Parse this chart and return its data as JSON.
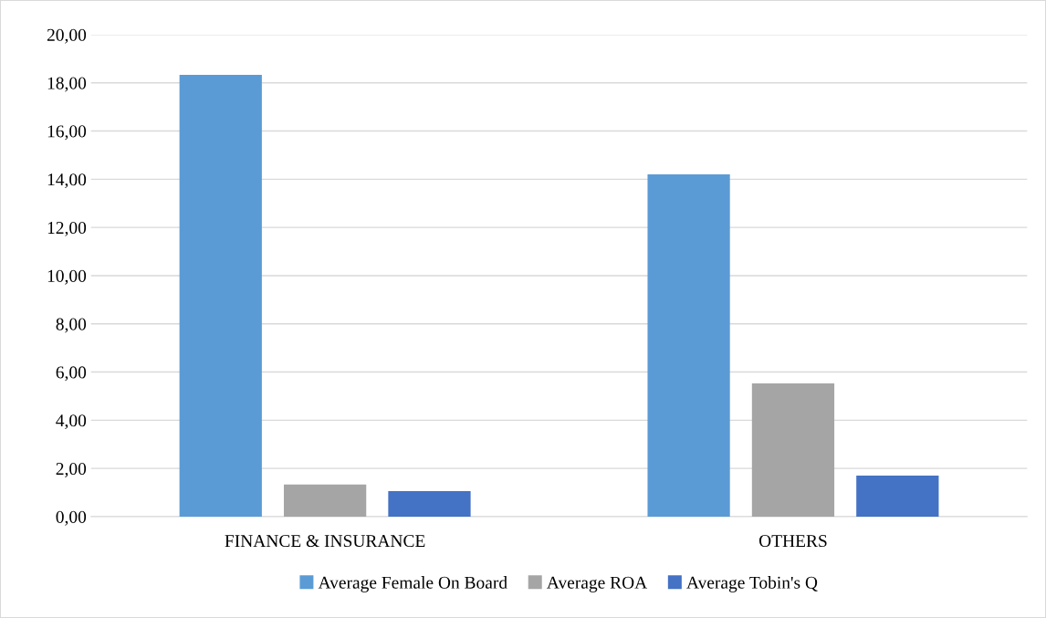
{
  "chart_data": {
    "type": "bar",
    "categories": [
      "FINANCE & INSURANCE",
      "OTHERS"
    ],
    "series": [
      {
        "name": "Average Female On Board",
        "color": "#5b9bd5",
        "values": [
          18.33,
          14.2
        ]
      },
      {
        "name": "Average ROA",
        "color": "#a5a5a5",
        "values": [
          1.33,
          5.53
        ]
      },
      {
        "name": "Average Tobin's Q",
        "color": "#4472c4",
        "values": [
          1.06,
          1.7
        ]
      }
    ],
    "ylim": [
      0,
      20
    ],
    "yticks": [
      {
        "value": 0,
        "label": "0,00"
      },
      {
        "value": 2,
        "label": "2,00"
      },
      {
        "value": 4,
        "label": "4,00"
      },
      {
        "value": 6,
        "label": "6,00"
      },
      {
        "value": 8,
        "label": "8,00"
      },
      {
        "value": 10,
        "label": "10,00"
      },
      {
        "value": 12,
        "label": "12,00"
      },
      {
        "value": 14,
        "label": "14,00"
      },
      {
        "value": 16,
        "label": "16,00"
      },
      {
        "value": 18,
        "label": "18,00"
      },
      {
        "value": 20,
        "label": "20,00"
      }
    ],
    "grid": "y",
    "legend": "bottom"
  }
}
